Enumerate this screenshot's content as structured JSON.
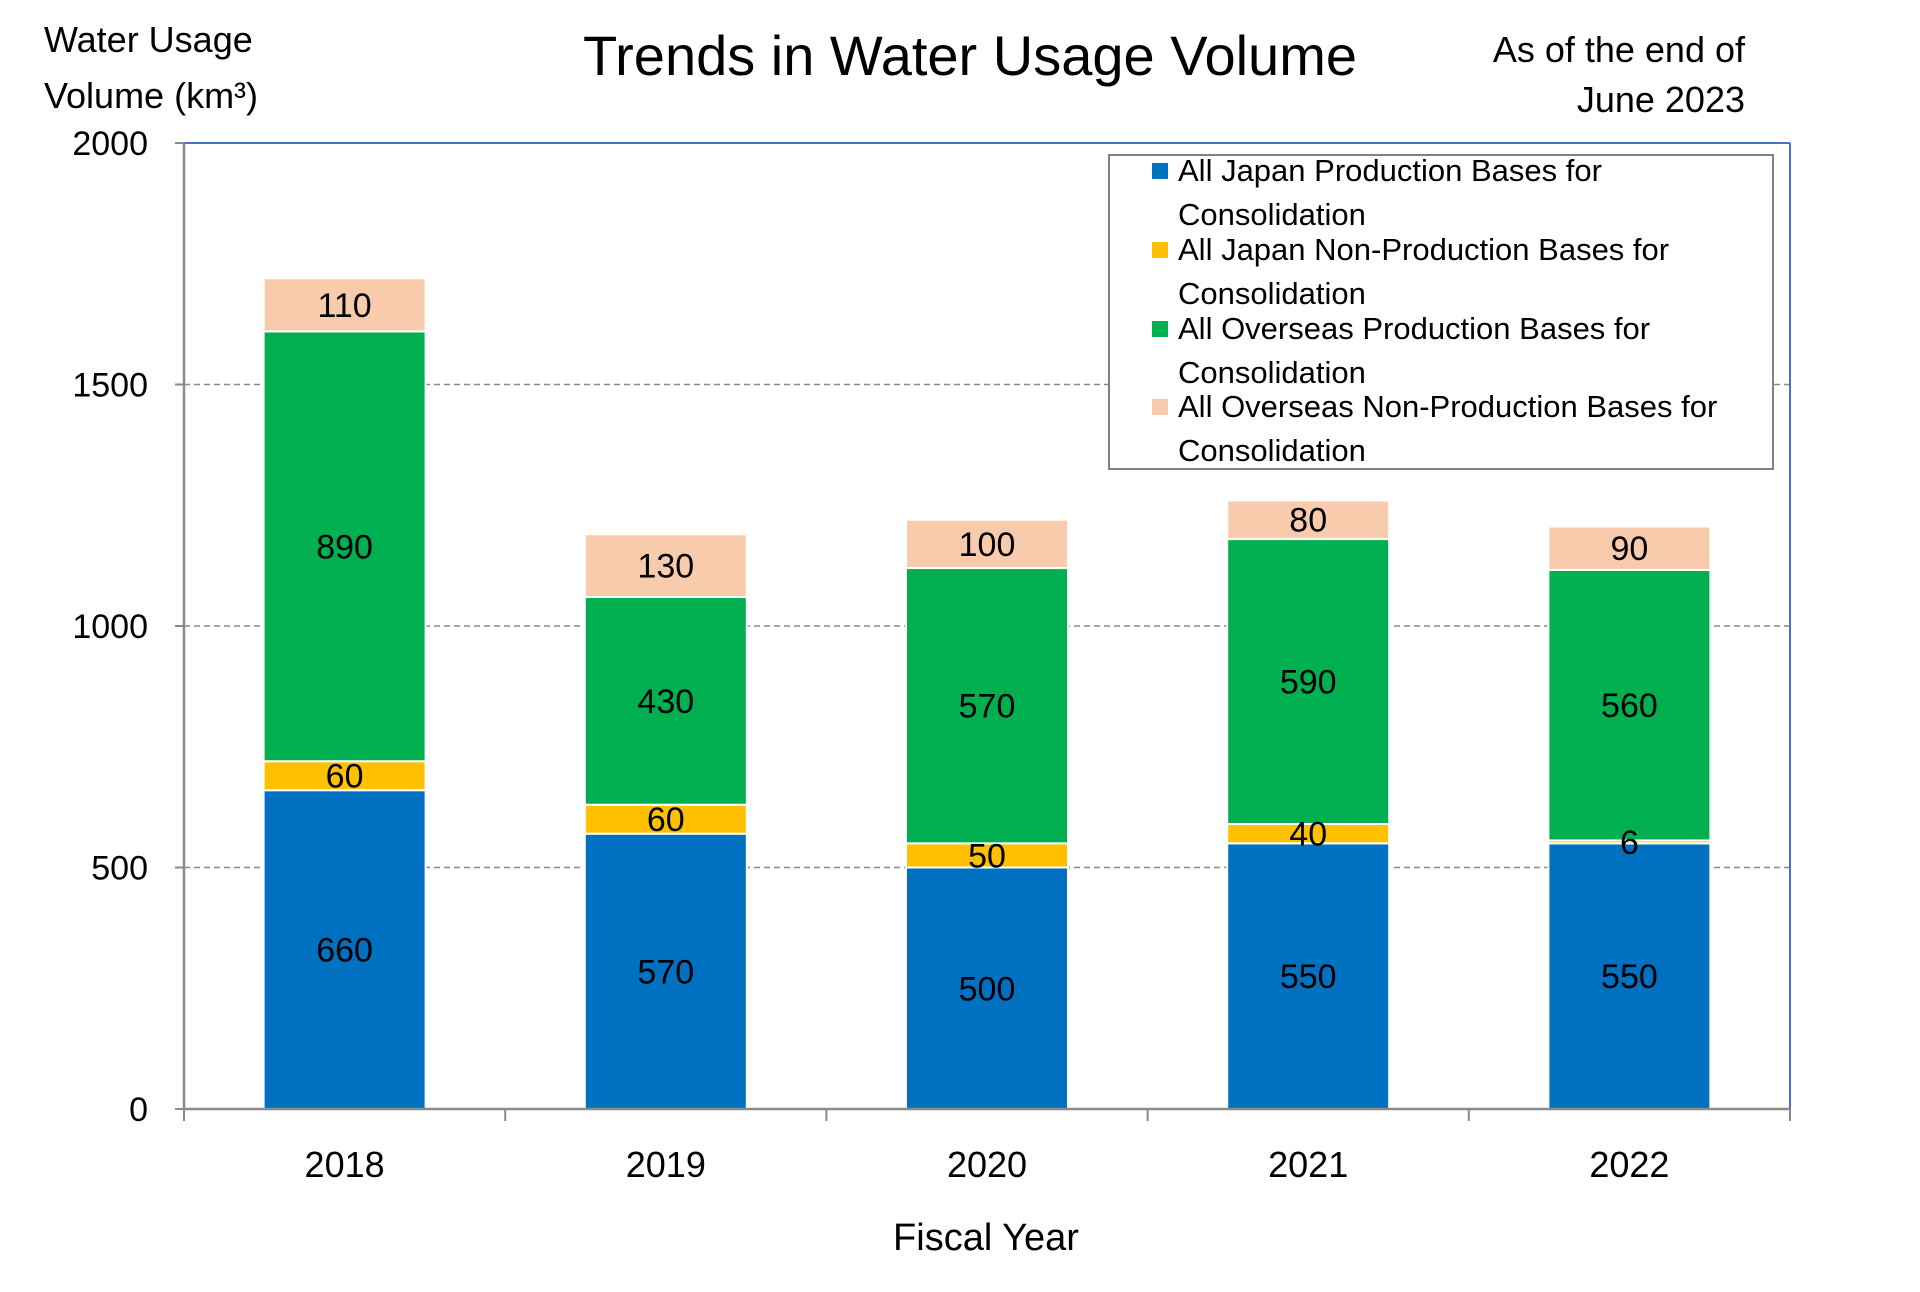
{
  "chart_data": {
    "type": "bar",
    "stacked": true,
    "title": "Trends in Water Usage Volume",
    "ylabel_line1": "Water Usage",
    "ylabel_line2": "Volume (km³)",
    "date_note_line1": "As of the end of",
    "date_note_line2": "June  2023",
    "xlabel": "Fiscal Year",
    "categories": [
      "2018",
      "2019",
      "2020",
      "2021",
      "2022"
    ],
    "ylim": [
      0,
      2000
    ],
    "yticks": [
      0,
      500,
      1000,
      1500,
      2000
    ],
    "grid": true,
    "legend_position": "top-right",
    "series": [
      {
        "name": "All Japan Production Bases for Consolidation",
        "legend_line1": "All Japan Production Bases for",
        "legend_line2": "Consolidation",
        "color": "#0070C0",
        "values": [
          660,
          570,
          500,
          550,
          550
        ],
        "labels": [
          "660",
          "570",
          "500",
          "550",
          "550"
        ]
      },
      {
        "name": "All Japan Non-Production Bases for Consolidation",
        "legend_line1": "All Japan Non-Production Bases for",
        "legend_line2": "Consolidation",
        "color": "#FFC000",
        "values": [
          60,
          60,
          50,
          40,
          6
        ],
        "labels": [
          "60",
          "60",
          "50",
          "40",
          "6"
        ]
      },
      {
        "name": "All Overseas Production Bases for Consolidation",
        "legend_line1": "All Overseas Production Bases for",
        "legend_line2": "Consolidation",
        "color": "#00B050",
        "values": [
          890,
          430,
          570,
          590,
          560
        ],
        "labels": [
          "890",
          "430",
          "570",
          "590",
          "560"
        ]
      },
      {
        "name": "All Overseas Non-Production Bases for Consolidation",
        "legend_line1": "All Overseas Non-Production Bases for",
        "legend_line2": "Consolidation",
        "color": "#F8CBAD",
        "values": [
          110,
          130,
          100,
          80,
          90
        ],
        "labels": [
          "110",
          "130",
          "100",
          "80",
          "90"
        ]
      }
    ]
  }
}
